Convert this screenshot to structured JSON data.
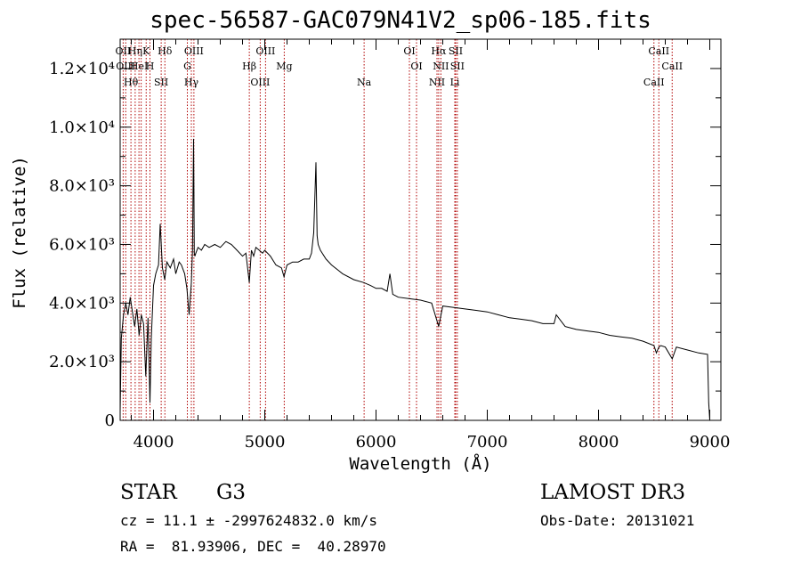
{
  "title": "spec-56587-GAC079N41V2_sp06-185.fits",
  "chart_data": {
    "type": "line",
    "title": "spec-56587-GAC079N41V2_sp06-185.fits",
    "xlabel": "Wavelength (Å)",
    "ylabel": "Flux (relative)",
    "xlim": [
      3700,
      9100
    ],
    "ylim": [
      0,
      13000
    ],
    "x_ticks": [
      4000,
      5000,
      6000,
      7000,
      8000,
      9000
    ],
    "x_tick_labels": [
      "4000",
      "5000",
      "6000",
      "7000",
      "8000",
      "9000"
    ],
    "y_ticks": [
      0,
      2000,
      4000,
      6000,
      8000,
      10000,
      12000
    ],
    "y_tick_labels": [
      "0",
      "2.0×10³",
      "4.0×10³",
      "6.0×10³",
      "8.0×10³",
      "1.0×10⁴",
      "1.2×10⁴"
    ],
    "series": [
      {
        "name": "spectrum",
        "x": [
          3700,
          3710,
          3730,
          3750,
          3770,
          3790,
          3810,
          3830,
          3850,
          3870,
          3890,
          3910,
          3930,
          3950,
          3968,
          3980,
          4000,
          4020,
          4045,
          4060,
          4080,
          4101,
          4120,
          4150,
          4180,
          4200,
          4230,
          4250,
          4280,
          4300,
          4320,
          4340,
          4350,
          4360,
          4363,
          4366,
          4372,
          4380,
          4400,
          4430,
          4460,
          4500,
          4550,
          4600,
          4650,
          4700,
          4750,
          4800,
          4830,
          4861,
          4880,
          4900,
          4920,
          4950,
          4980,
          5000,
          5050,
          5100,
          5150,
          5173,
          5200,
          5250,
          5300,
          5350,
          5400,
          5420,
          5440,
          5460,
          5470,
          5480,
          5500,
          5550,
          5600,
          5700,
          5800,
          5890,
          5950,
          6000,
          6050,
          6100,
          6125,
          6150,
          6200,
          6300,
          6400,
          6500,
          6563,
          6600,
          6700,
          6800,
          6900,
          7000,
          7100,
          7200,
          7300,
          7400,
          7500,
          7600,
          7620,
          7700,
          7800,
          7900,
          8000,
          8100,
          8200,
          8300,
          8400,
          8498,
          8520,
          8542,
          8560,
          8600,
          8662,
          8700,
          8800,
          8900,
          8980,
          8990,
          9000
        ],
        "y": [
          300,
          2800,
          3600,
          4000,
          3600,
          4200,
          3700,
          3200,
          3800,
          2900,
          3600,
          3300,
          1500,
          3500,
          600,
          2800,
          4600,
          5000,
          5300,
          6700,
          5200,
          4800,
          5400,
          5200,
          5500,
          5000,
          5400,
          5300,
          5000,
          4500,
          3600,
          4700,
          5800,
          9600,
          7800,
          5700,
          5600,
          5700,
          5900,
          5800,
          6000,
          5900,
          6000,
          5900,
          6100,
          6000,
          5800,
          5600,
          5700,
          4700,
          5800,
          5600,
          5900,
          5800,
          5700,
          5800,
          5600,
          5300,
          5200,
          4900,
          5300,
          5400,
          5400,
          5500,
          5500,
          5700,
          6400,
          8800,
          6300,
          6000,
          5800,
          5500,
          5300,
          5000,
          4800,
          4700,
          4600,
          4500,
          4500,
          4400,
          5000,
          4300,
          4200,
          4150,
          4100,
          4000,
          3200,
          3900,
          3850,
          3800,
          3750,
          3700,
          3600,
          3500,
          3450,
          3400,
          3300,
          3300,
          3600,
          3200,
          3100,
          3050,
          3000,
          2900,
          2850,
          2800,
          2700,
          2550,
          2300,
          2500,
          2550,
          2500,
          2100,
          2500,
          2400,
          2300,
          2250,
          600,
          0
        ]
      }
    ],
    "lines_top": [
      {
        "wl": 3727,
        "label": "OII"
      },
      {
        "wl": 3750,
        "label": "OIII"
      },
      {
        "wl": 3797,
        "label": "Hθ"
      },
      {
        "wl": 3835,
        "label": "Hη"
      },
      {
        "wl": 3869,
        "label": "HeI"
      },
      {
        "wl": 3889,
        "label": ""
      },
      {
        "wl": 3934,
        "label": "K"
      },
      {
        "wl": 3968,
        "label": "H"
      },
      {
        "wl": 4069,
        "label": "SII"
      },
      {
        "wl": 4102,
        "label": "Hδ"
      },
      {
        "wl": 4304,
        "label": "G"
      },
      {
        "wl": 4340,
        "label": "Hγ"
      },
      {
        "wl": 4363,
        "label": "OIII"
      },
      {
        "wl": 4861,
        "label": "Hβ"
      },
      {
        "wl": 4959,
        "label": "OIII"
      },
      {
        "wl": 5007,
        "label": "OIII"
      },
      {
        "wl": 5175,
        "label": "Mg"
      },
      {
        "wl": 5893,
        "label": "Na"
      },
      {
        "wl": 6300,
        "label": "OI"
      },
      {
        "wl": 6364,
        "label": "OI"
      },
      {
        "wl": 6548,
        "label": "NII"
      },
      {
        "wl": 6563,
        "label": "Hα"
      },
      {
        "wl": 6583,
        "label": "NII"
      },
      {
        "wl": 6708,
        "label": "Li"
      },
      {
        "wl": 6716,
        "label": "SII"
      },
      {
        "wl": 6731,
        "label": "SII"
      },
      {
        "wl": 8498,
        "label": "CaII"
      },
      {
        "wl": 8542,
        "label": "CaII"
      },
      {
        "wl": 8662,
        "label": "CaII"
      }
    ]
  },
  "info": {
    "obj_class": "STAR",
    "subclass": "G3",
    "survey": "LAMOST DR3",
    "cz": "cz = 11.1 ± -2997624832.0 km/s",
    "obs_date": "Obs-Date: 20131021",
    "coords": "RA =  81.93906, DEC =  40.28970"
  }
}
